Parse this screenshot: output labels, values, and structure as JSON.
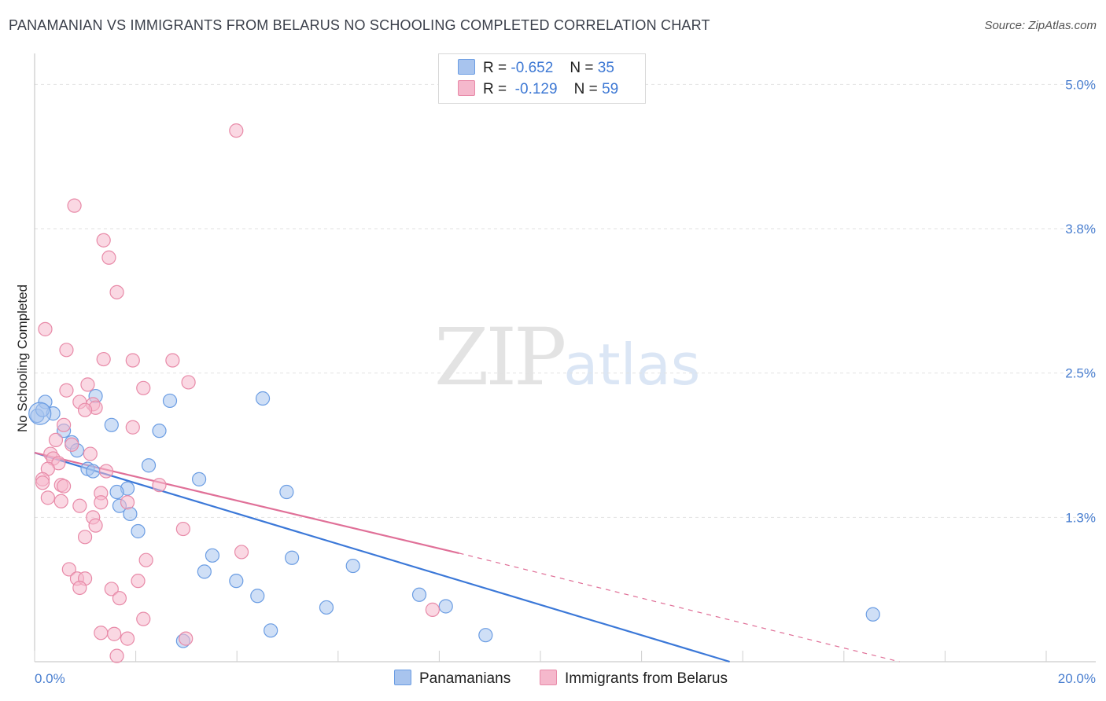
{
  "header": {
    "title": "PANAMANIAN VS IMMIGRANTS FROM BELARUS NO SCHOOLING COMPLETED CORRELATION CHART",
    "source": "Source: ZipAtlas.com"
  },
  "watermark": {
    "zip": "ZIP",
    "atlas": "atlas"
  },
  "legend": {
    "rows": [
      {
        "r_label": "R =",
        "r_value": "-0.652",
        "n_label": "N =",
        "n_value": "35",
        "color": "#a8c4ee"
      },
      {
        "r_label": "R =",
        "r_value": "-0.129",
        "n_label": "N =",
        "n_value": "59",
        "color": "#f5b8cc"
      }
    ]
  },
  "bottom_legend": [
    {
      "label": "Panamanians",
      "color": "#a8c4ee"
    },
    {
      "label": "Immigrants from Belarus",
      "color": "#f5b8cc"
    }
  ],
  "chart_data": {
    "type": "scatter",
    "title": "PANAMANIAN VS IMMIGRANTS FROM BELARUS NO SCHOOLING COMPLETED CORRELATION CHART",
    "xlabel": "",
    "ylabel": "No Schooling Completed",
    "xlim": [
      0,
      20
    ],
    "ylim": [
      0,
      5.2
    ],
    "x_tick_labels": [
      {
        "value": 0,
        "label": "0.0%"
      },
      {
        "value": 20,
        "label": "20.0%"
      }
    ],
    "y_tick_labels": [
      {
        "value": 1.25,
        "label": "1.3%"
      },
      {
        "value": 2.5,
        "label": "2.5%"
      },
      {
        "value": 3.75,
        "label": "3.8%"
      },
      {
        "value": 5.0,
        "label": "5.0%"
      }
    ],
    "series": [
      {
        "name": "Panamanians",
        "color": "#6b9de3",
        "fill": "#a8c4ee",
        "points": [
          [
            0.2,
            2.25
          ],
          [
            0.35,
            2.15
          ],
          [
            0.55,
            2.0
          ],
          [
            0.7,
            1.9
          ],
          [
            0.8,
            1.83
          ],
          [
            1.15,
            2.3
          ],
          [
            1.0,
            1.67
          ],
          [
            1.1,
            1.65
          ],
          [
            1.45,
            2.05
          ],
          [
            1.75,
            1.5
          ],
          [
            1.55,
            1.47
          ],
          [
            1.6,
            1.35
          ],
          [
            1.8,
            1.28
          ],
          [
            1.95,
            1.13
          ],
          [
            2.15,
            1.7
          ],
          [
            2.35,
            2.0
          ],
          [
            2.55,
            2.26
          ],
          [
            3.1,
            1.58
          ],
          [
            3.35,
            0.92
          ],
          [
            3.2,
            0.78
          ],
          [
            3.8,
            0.7
          ],
          [
            4.3,
            2.28
          ],
          [
            4.2,
            0.57
          ],
          [
            4.75,
            1.47
          ],
          [
            4.85,
            0.9
          ],
          [
            4.45,
            0.27
          ],
          [
            5.5,
            0.47
          ],
          [
            6.0,
            0.83
          ],
          [
            7.25,
            0.58
          ],
          [
            7.75,
            0.48
          ],
          [
            8.5,
            0.23
          ],
          [
            2.8,
            0.18
          ],
          [
            15.8,
            0.41
          ],
          [
            0.05,
            2.13
          ],
          [
            0.15,
            2.18
          ]
        ]
      },
      {
        "name": "Immigrants from Belarus",
        "color": "#e88aa8",
        "fill": "#f5b8cc",
        "points": [
          [
            3.8,
            4.6
          ],
          [
            0.75,
            3.95
          ],
          [
            1.3,
            3.65
          ],
          [
            1.4,
            3.5
          ],
          [
            1.55,
            3.2
          ],
          [
            0.2,
            2.88
          ],
          [
            0.6,
            2.7
          ],
          [
            1.3,
            2.62
          ],
          [
            1.85,
            2.61
          ],
          [
            2.6,
            2.61
          ],
          [
            1.0,
            2.4
          ],
          [
            2.9,
            2.42
          ],
          [
            2.05,
            2.37
          ],
          [
            0.6,
            2.35
          ],
          [
            0.85,
            2.25
          ],
          [
            1.1,
            2.23
          ],
          [
            1.15,
            2.2
          ],
          [
            0.95,
            2.18
          ],
          [
            0.55,
            2.05
          ],
          [
            1.85,
            2.03
          ],
          [
            0.4,
            1.92
          ],
          [
            0.7,
            1.88
          ],
          [
            0.3,
            1.8
          ],
          [
            0.35,
            1.76
          ],
          [
            1.05,
            1.8
          ],
          [
            0.45,
            1.72
          ],
          [
            0.25,
            1.67
          ],
          [
            1.35,
            1.65
          ],
          [
            0.15,
            1.58
          ],
          [
            0.15,
            1.55
          ],
          [
            0.5,
            1.53
          ],
          [
            0.55,
            1.52
          ],
          [
            2.35,
            1.53
          ],
          [
            1.25,
            1.46
          ],
          [
            0.25,
            1.42
          ],
          [
            0.5,
            1.39
          ],
          [
            1.25,
            1.38
          ],
          [
            1.75,
            1.38
          ],
          [
            0.85,
            1.35
          ],
          [
            1.1,
            1.25
          ],
          [
            1.15,
            1.18
          ],
          [
            2.8,
            1.15
          ],
          [
            0.95,
            1.08
          ],
          [
            3.9,
            0.95
          ],
          [
            2.1,
            0.88
          ],
          [
            0.65,
            0.8
          ],
          [
            0.8,
            0.72
          ],
          [
            0.95,
            0.72
          ],
          [
            1.95,
            0.7
          ],
          [
            0.85,
            0.64
          ],
          [
            1.45,
            0.63
          ],
          [
            1.6,
            0.55
          ],
          [
            7.5,
            0.45
          ],
          [
            2.05,
            0.37
          ],
          [
            1.25,
            0.25
          ],
          [
            1.5,
            0.24
          ],
          [
            1.75,
            0.2
          ],
          [
            2.85,
            0.2
          ],
          [
            1.55,
            0.05
          ]
        ]
      }
    ],
    "trend_lines": [
      {
        "series": "Panamanians",
        "color": "#3b78d8",
        "from": [
          0,
          1.81
        ],
        "to": [
          13.1,
          0
        ],
        "dashed": false
      },
      {
        "series": "Immigrants from Belarus",
        "color": "#e07098",
        "from": [
          0,
          1.81
        ],
        "to": [
          8.0,
          0.94
        ],
        "dashed": false
      },
      {
        "series": "Immigrants from Belarus",
        "color": "#e07098",
        "from": [
          8.0,
          0.94
        ],
        "to": [
          16.3,
          0.0
        ],
        "dashed": true
      }
    ]
  }
}
